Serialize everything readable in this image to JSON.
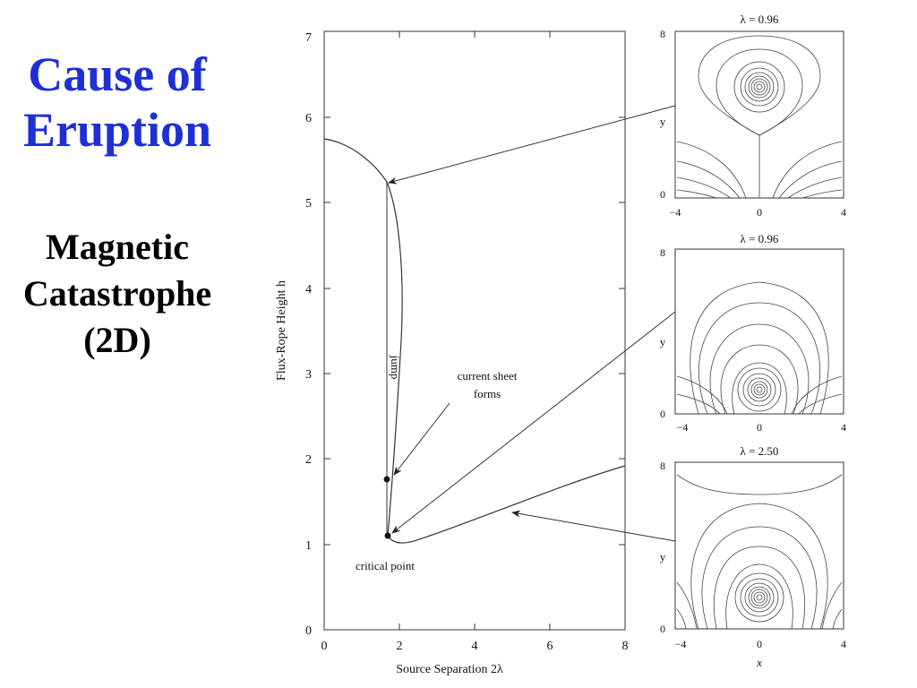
{
  "slide": {
    "title_line1": "Cause of",
    "title_line2": "Eruption",
    "subtitle_line1": "Magnetic",
    "subtitle_line2": "Catastrophe",
    "subtitle_line3": "(2D)"
  },
  "main_plot": {
    "xlabel": "Source Separation 2λ",
    "ylabel": "Flux-Rope Height h",
    "x_ticks": [
      "0",
      "2",
      "4",
      "6",
      "8"
    ],
    "y_ticks": [
      "0",
      "1",
      "2",
      "3",
      "4",
      "5",
      "6",
      "7"
    ],
    "annotations": {
      "jump": "jump",
      "current_sheet_line1": "current sheet",
      "current_sheet_line2": "forms",
      "critical_point": "critical point"
    }
  },
  "insets": [
    {
      "title": "λ = 0.96",
      "ylabel": "y",
      "y_top": "8",
      "y_bottom": "0",
      "x_left": "−4",
      "x_mid": "0",
      "x_right": "4"
    },
    {
      "title": "λ = 0.96",
      "ylabel": "y",
      "y_top": "8",
      "y_bottom": "0",
      "x_left": "−4",
      "x_mid": "0",
      "x_right": "4"
    },
    {
      "title": "λ = 2.50",
      "ylabel": "y",
      "y_top": "8",
      "y_bottom": "0",
      "x_left": "−4",
      "x_mid": "0",
      "x_right": "4",
      "xlabel": "x"
    }
  ]
}
